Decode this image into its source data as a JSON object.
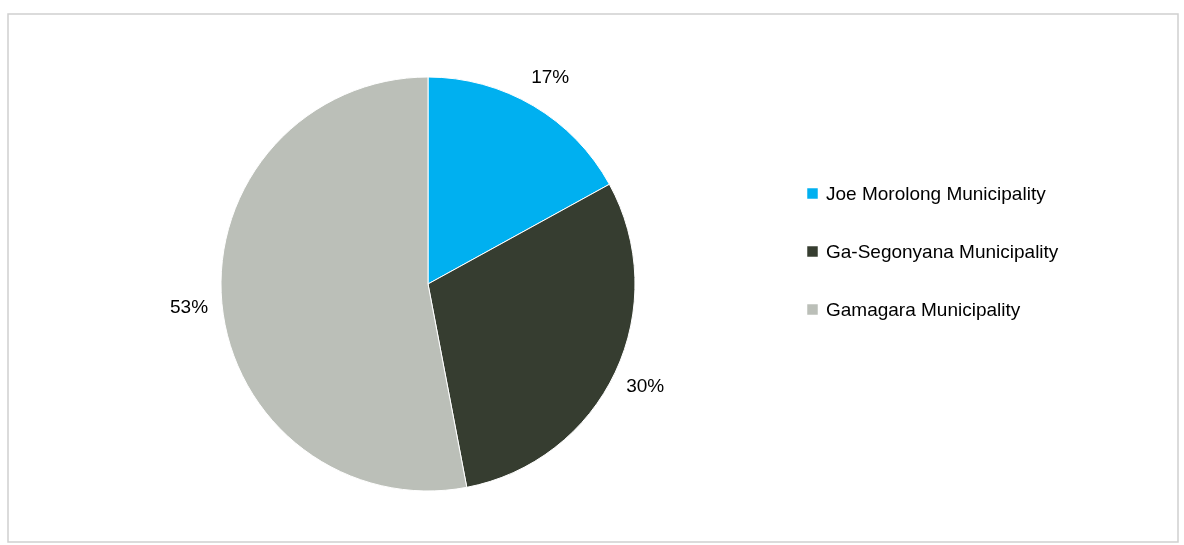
{
  "chart_data": {
    "type": "pie",
    "categories": [
      "Joe Morolong Municipality",
      "Ga-Segonyana Municipality",
      "Gamagara Municipality"
    ],
    "values": [
      17,
      30,
      53
    ],
    "colors": [
      "#00b0f0",
      "#363d30",
      "#bbbfb8"
    ],
    "value_labels": [
      "17%",
      "30%",
      "53%"
    ],
    "legend": "right"
  }
}
